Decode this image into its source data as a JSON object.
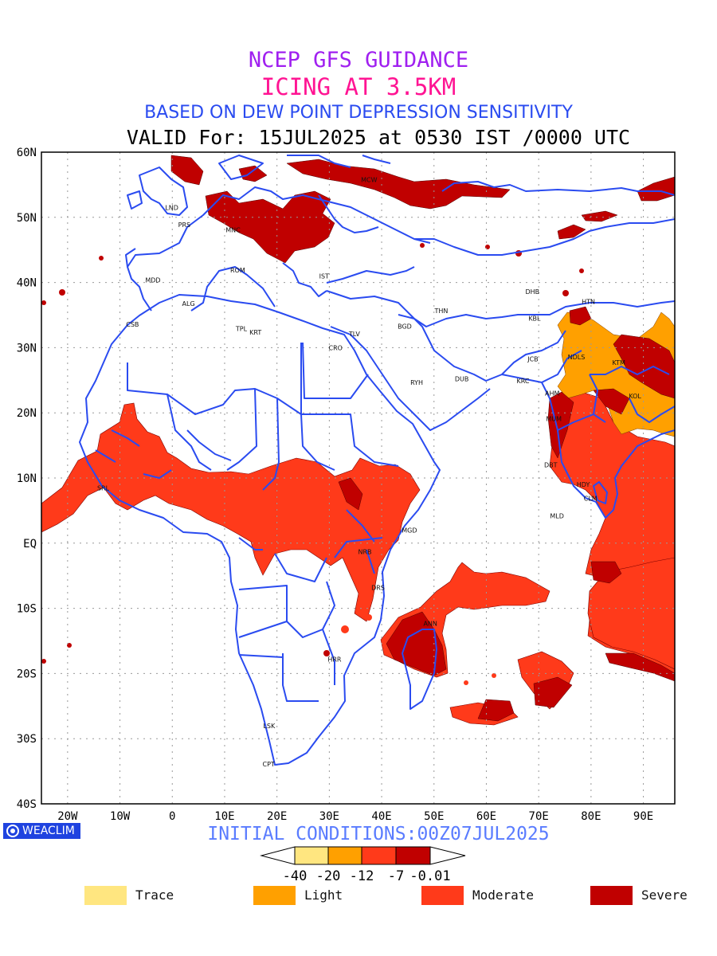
{
  "header": {
    "line1": "NCEP GFS GUIDANCE",
    "line2": "ICING AT 3.5KM",
    "line3": "BASED ON DEW POINT DEPRESSION SENSITIVITY",
    "line4": "VALID For: 15JUL2025 at 0530 IST /0000 UTC"
  },
  "map": {
    "lat_ticks": [
      "60N",
      "50N",
      "40N",
      "30N",
      "20N",
      "10N",
      "EQ",
      "10S",
      "20S",
      "30S",
      "40S"
    ],
    "lon_ticks": [
      "20W",
      "10W",
      "0",
      "10E",
      "20E",
      "30E",
      "40E",
      "50E",
      "60E",
      "70E",
      "80E",
      "90E"
    ],
    "extent": {
      "lon_min": -25,
      "lon_max": 96,
      "lat_min": -40,
      "lat_max": 60
    },
    "colors": {
      "trace": "#ffe680",
      "light": "#ffa000",
      "moderate": "#ff3a1a",
      "severe": "#c00000",
      "boundary": "#2a4bf0"
    },
    "stations": [
      {
        "code": "MCW",
        "lon": 37.6,
        "lat": 55.8
      },
      {
        "code": "LND",
        "lon": -0.1,
        "lat": 51.5
      },
      {
        "code": "PRS",
        "lon": 2.3,
        "lat": 48.9
      },
      {
        "code": "MNC",
        "lon": 11.6,
        "lat": 48.1
      },
      {
        "code": "ROM",
        "lon": 12.5,
        "lat": 41.9
      },
      {
        "code": "MDD",
        "lon": -3.7,
        "lat": 40.4
      },
      {
        "code": "IST",
        "lon": 29.0,
        "lat": 41.0
      },
      {
        "code": "ALG",
        "lon": 3.1,
        "lat": 36.8
      },
      {
        "code": "CSB",
        "lon": -7.6,
        "lat": 33.6
      },
      {
        "code": "TPL",
        "lon": 13.2,
        "lat": 32.9
      },
      {
        "code": "KRT",
        "lon": 15.9,
        "lat": 32.4
      },
      {
        "code": "TLV",
        "lon": 34.8,
        "lat": 32.1
      },
      {
        "code": "CRO",
        "lon": 31.2,
        "lat": 30.0
      },
      {
        "code": "BGD",
        "lon": 44.4,
        "lat": 33.3
      },
      {
        "code": "THN",
        "lon": 51.4,
        "lat": 35.7
      },
      {
        "code": "RYH",
        "lon": 46.7,
        "lat": 24.7
      },
      {
        "code": "DUB",
        "lon": 55.3,
        "lat": 25.2
      },
      {
        "code": "DHB",
        "lon": 68.8,
        "lat": 38.6
      },
      {
        "code": "KBL",
        "lon": 69.2,
        "lat": 34.5
      },
      {
        "code": "HTN",
        "lon": 79.5,
        "lat": 37.1
      },
      {
        "code": "JCB",
        "lon": 68.9,
        "lat": 28.3
      },
      {
        "code": "KRC",
        "lon": 67.0,
        "lat": 24.9
      },
      {
        "code": "AHM",
        "lon": 72.6,
        "lat": 23.0
      },
      {
        "code": "MUM",
        "lon": 72.9,
        "lat": 19.1
      },
      {
        "code": "NDLS",
        "lon": 77.2,
        "lat": 28.6
      },
      {
        "code": "KTM",
        "lon": 85.3,
        "lat": 27.7
      },
      {
        "code": "KOL",
        "lon": 88.4,
        "lat": 22.6
      },
      {
        "code": "DBT",
        "lon": 72.3,
        "lat": 12.0
      },
      {
        "code": "HDY",
        "lon": 78.5,
        "lat": 9.0
      },
      {
        "code": "CLM",
        "lon": 79.9,
        "lat": 6.9
      },
      {
        "code": "MLD",
        "lon": 73.5,
        "lat": 4.2
      },
      {
        "code": "SRL",
        "lon": -13.2,
        "lat": 8.5
      },
      {
        "code": "MGD",
        "lon": 45.3,
        "lat": 2.0
      },
      {
        "code": "NRB",
        "lon": 36.8,
        "lat": -1.3
      },
      {
        "code": "DRS",
        "lon": 39.3,
        "lat": -6.8
      },
      {
        "code": "ANN",
        "lon": 49.3,
        "lat": -12.3
      },
      {
        "code": "HRR",
        "lon": 31.0,
        "lat": -17.8
      },
      {
        "code": "LSK",
        "lon": 18.5,
        "lat": -28.0
      },
      {
        "code": "CPT",
        "lon": 18.4,
        "lat": -33.9
      }
    ]
  },
  "footer": {
    "logo": "WEACLIM",
    "initial_conditions": "INITIAL CONDITIONS:00Z07JUL2025",
    "colorbar_labels": [
      "-40",
      "-20",
      "-12",
      "-7",
      "-0.01"
    ]
  },
  "legend": [
    {
      "label": "Trace",
      "color": "#ffe680"
    },
    {
      "label": "Light",
      "color": "#ffa000"
    },
    {
      "label": "Moderate",
      "color": "#ff3a1a"
    },
    {
      "label": "Severe",
      "color": "#c00000"
    }
  ]
}
